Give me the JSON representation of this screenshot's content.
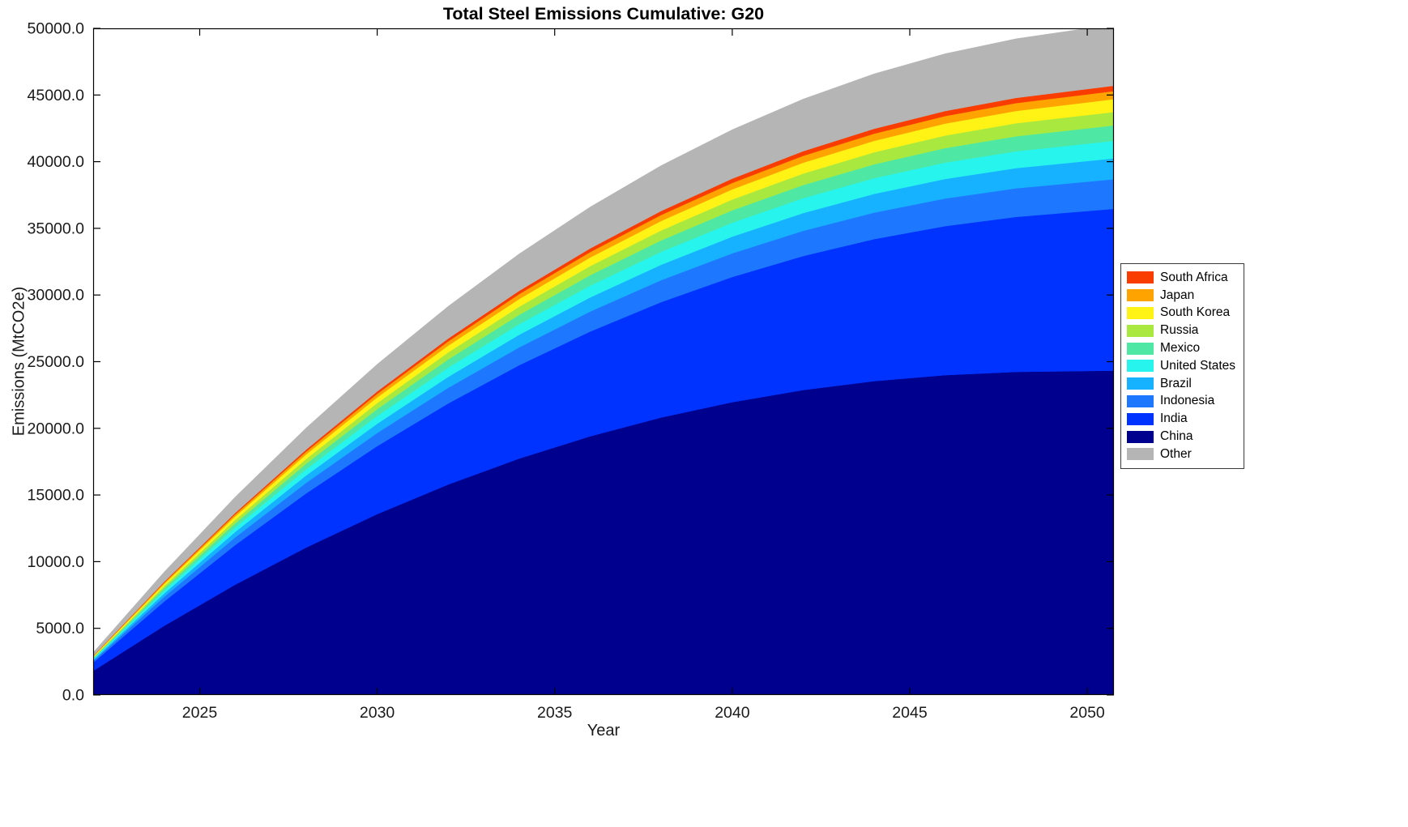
{
  "chart_data": {
    "type": "area",
    "stacked": true,
    "title": "Total Steel Emissions Cumulative: G20",
    "xlabel": "Year",
    "ylabel": "Emissions (MtCO2e)",
    "xlim": [
      2022,
      2050.75
    ],
    "ylim": [
      0,
      50000
    ],
    "grid": false,
    "legend_position": "right-outside",
    "x": [
      2022,
      2024,
      2026,
      2028,
      2030,
      2032,
      2034,
      2036,
      2038,
      2040,
      2042,
      2044,
      2046,
      2048,
      2050
    ],
    "x_ticks": [
      2025,
      2030,
      2035,
      2040,
      2045,
      2050
    ],
    "x_tick_labels": [
      "2025",
      "2030",
      "2035",
      "2040",
      "2045",
      "2050"
    ],
    "y_ticks": [
      0,
      5000,
      10000,
      15000,
      20000,
      25000,
      30000,
      35000,
      40000,
      45000,
      50000
    ],
    "y_tick_labels": [
      "0.0",
      "5000.0",
      "10000.0",
      "15000.0",
      "20000.0",
      "25000.0",
      "30000.0",
      "35000.0",
      "40000.0",
      "45000.0",
      "50000.0"
    ],
    "series": [
      {
        "name": "China",
        "color": "#00008f",
        "values": [
          1806,
          5190,
          8274,
          11066,
          13569,
          15790,
          17734,
          19404,
          20813,
          21965,
          22871,
          23542,
          23989,
          24232,
          24300
        ]
      },
      {
        "name": "India",
        "color": "#0033ff",
        "values": [
          621,
          1822,
          2970,
          4064,
          5100,
          6082,
          7002,
          7862,
          8659,
          9391,
          10058,
          10654,
          11179,
          11628,
          12000
        ]
      },
      {
        "name": "Indonesia",
        "color": "#1e78ff",
        "values": [
          122,
          356,
          578,
          788,
          985,
          1170,
          1341,
          1499,
          1643,
          1774,
          1889,
          1990,
          2076,
          2146,
          2200
        ]
      },
      {
        "name": "Brazil",
        "color": "#17b2ff",
        "values": [
          86,
          251,
          408,
          555,
          694,
          824,
          945,
          1056,
          1158,
          1250,
          1331,
          1402,
          1463,
          1512,
          1550
        ]
      },
      {
        "name": "United States",
        "color": "#27f4ec",
        "values": [
          72,
          210,
          342,
          466,
          582,
          691,
          793,
          886,
          971,
          1048,
          1116,
          1176,
          1227,
          1268,
          1300
        ]
      },
      {
        "name": "Mexico",
        "color": "#4fe7a4",
        "values": [
          64,
          186,
          302,
          412,
          515,
          612,
          701,
          784,
          859,
          927,
          988,
          1040,
          1085,
          1122,
          1150
        ]
      },
      {
        "name": "Russia",
        "color": "#a9e93f",
        "values": [
          55,
          162,
          263,
          358,
          448,
          532,
          610,
          681,
          747,
          806,
          859,
          905,
          944,
          976,
          1000
        ]
      },
      {
        "name": "South Korea",
        "color": "#fff215",
        "values": [
          53,
          154,
          250,
          340,
          426,
          505,
          579,
          647,
          710,
          766,
          816,
          859,
          897,
          927,
          950
        ]
      },
      {
        "name": "Japan",
        "color": "#ffa300",
        "values": [
          33,
          97,
          158,
          215,
          269,
          319,
          366,
          409,
          448,
          484,
          515,
          543,
          566,
          585,
          600
        ]
      },
      {
        "name": "South Africa",
        "color": "#f93d00",
        "values": [
          22,
          65,
          105,
          143,
          179,
          213,
          244,
          273,
          299,
          322,
          344,
          362,
          377,
          390,
          400
        ]
      },
      {
        "name": "Other",
        "color": "#b5b5b5",
        "values": [
          252,
          737,
          1196,
          1630,
          2038,
          2420,
          2774,
          3101,
          3399,
          3668,
          3907,
          4116,
          4294,
          4439,
          4550
        ]
      }
    ],
    "legend_order": [
      "South Africa",
      "Japan",
      "South Korea",
      "Russia",
      "Mexico",
      "United States",
      "Brazil",
      "Indonesia",
      "India",
      "China",
      "Other"
    ]
  },
  "style_colors": {
    "axis_line": "#000000",
    "tick_text": "#1a1a1a",
    "background": "#ffffff"
  }
}
